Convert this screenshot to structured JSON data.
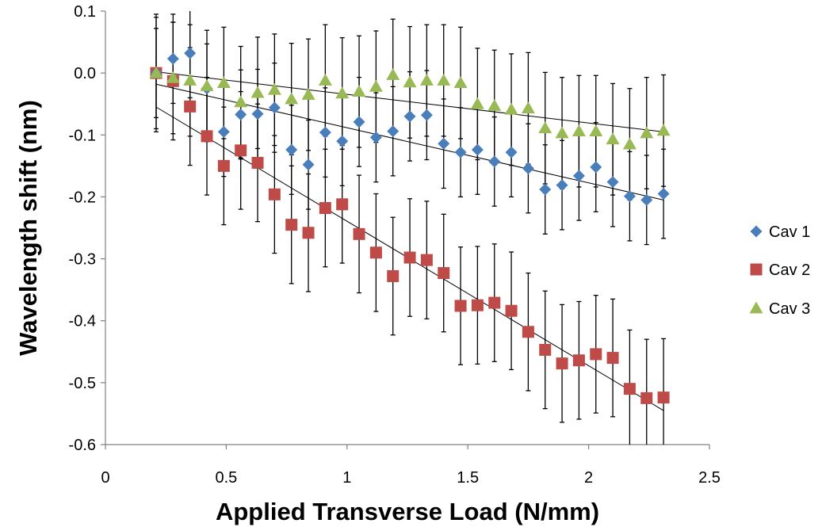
{
  "chart_data": {
    "type": "scatter",
    "title": "",
    "xlabel": "Applied Transverse Load (N/mm)",
    "ylabel": "Wavelength shift (nm)",
    "xlim": [
      0,
      2.5
    ],
    "ylim": [
      -0.6,
      0.1
    ],
    "xticks": [
      0,
      0.5,
      1,
      1.5,
      2,
      2.5
    ],
    "xtick_labels": [
      "0",
      "0.5",
      "1",
      "1.5",
      "2",
      "2.5"
    ],
    "yticks": [
      0.1,
      0.0,
      -0.1,
      -0.2,
      -0.3,
      -0.4,
      -0.5,
      -0.6
    ],
    "ytick_labels": [
      "0.1",
      "0.0",
      "-0.1",
      "-0.2",
      "-0.3",
      "-0.4",
      "-0.5",
      "-0.6"
    ],
    "grid": false,
    "legend_position": "right",
    "x": [
      0.21,
      0.28,
      0.35,
      0.42,
      0.49,
      0.56,
      0.63,
      0.7,
      0.77,
      0.84,
      0.91,
      0.98,
      1.05,
      1.12,
      1.19,
      1.26,
      1.33,
      1.4,
      1.47,
      1.54,
      1.61,
      1.68,
      1.75,
      1.82,
      1.89,
      1.96,
      2.03,
      2.1,
      2.17,
      2.24,
      2.31
    ],
    "series": [
      {
        "name": "Cav 1",
        "marker": "diamond",
        "color": "#4a7ebb",
        "values": [
          0.0,
          0.023,
          0.032,
          -0.025,
          -0.095,
          -0.067,
          -0.066,
          -0.056,
          -0.124,
          -0.148,
          -0.096,
          -0.11,
          -0.079,
          -0.104,
          -0.094,
          -0.07,
          -0.068,
          -0.114,
          -0.128,
          -0.124,
          -0.143,
          -0.128,
          -0.154,
          -0.188,
          -0.181,
          -0.166,
          -0.152,
          -0.176,
          -0.199,
          -0.205,
          -0.195
        ],
        "error": 0.072,
        "trend": [
          -0.018,
          -0.205
        ]
      },
      {
        "name": "Cav 2",
        "marker": "square",
        "color": "#be4b48",
        "values": [
          0.0,
          -0.013,
          -0.054,
          -0.102,
          -0.15,
          -0.125,
          -0.145,
          -0.196,
          -0.245,
          -0.258,
          -0.218,
          -0.212,
          -0.26,
          -0.29,
          -0.328,
          -0.298,
          -0.302,
          -0.323,
          -0.376,
          -0.375,
          -0.371,
          -0.384,
          -0.418,
          -0.447,
          -0.469,
          -0.464,
          -0.454,
          -0.46,
          -0.51,
          -0.525,
          -0.524
        ],
        "error": 0.095,
        "trend": [
          -0.055,
          -0.545
        ]
      },
      {
        "name": "Cav 3",
        "marker": "triangle",
        "color": "#98b954",
        "values": [
          0.0,
          -0.008,
          -0.012,
          -0.021,
          -0.016,
          -0.047,
          -0.032,
          -0.027,
          -0.042,
          -0.035,
          -0.012,
          -0.033,
          -0.03,
          -0.022,
          -0.003,
          -0.015,
          -0.012,
          -0.012,
          -0.016,
          -0.05,
          -0.053,
          -0.059,
          -0.057,
          -0.089,
          -0.097,
          -0.094,
          -0.094,
          -0.107,
          -0.115,
          -0.097,
          -0.093
        ],
        "error": 0.09,
        "trend": [
          0.002,
          -0.095
        ]
      }
    ]
  }
}
